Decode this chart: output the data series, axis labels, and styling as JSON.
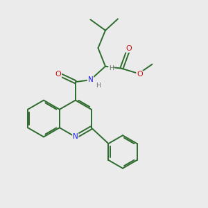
{
  "bg_color": "#ebebeb",
  "bond_color": "#2d6b2d",
  "bond_width": 1.4,
  "atom_colors": {
    "N": "#1a1aee",
    "O": "#cc1111",
    "H": "#607060",
    "C": "#2d6b2d"
  }
}
